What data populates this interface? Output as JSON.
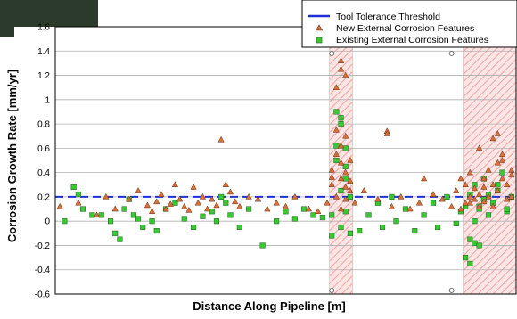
{
  "chart_data": {
    "type": "scatter",
    "title": "",
    "xlabel": "Distance Along Pipeline [m]",
    "ylabel": "Corrosion Growth Rate [mm/yr]",
    "ylim": [
      -0.6,
      1.6
    ],
    "yticks": [
      -0.6,
      -0.4,
      -0.2,
      0,
      0.2,
      0.4,
      0.6,
      0.8,
      1,
      1.2,
      1.4,
      1.6
    ],
    "ytick_labels": [
      "-0.6",
      "-0.4",
      "-0.2",
      "0",
      "0.2",
      "0.4",
      "0.6",
      "0.8",
      "1",
      "1.2",
      "1.4",
      "1.6"
    ],
    "xticks_shown": false,
    "grid": "horizontal",
    "legend_position": "top-right",
    "threshold": {
      "name": "Tool Tolerance Threshold",
      "value": 0.2,
      "color": "#1f2fd6"
    },
    "highlight_bands": [
      {
        "from": 0.595,
        "to": 0.645
      },
      {
        "from": 0.885,
        "to": 1.0
      }
    ],
    "series": [
      {
        "name": "New External Corrosion Features",
        "marker": "triangle",
        "color": "#d9703a",
        "x": [
          0.01,
          0.05,
          0.09,
          0.11,
          0.13,
          0.16,
          0.18,
          0.2,
          0.21,
          0.22,
          0.23,
          0.24,
          0.25,
          0.26,
          0.27,
          0.28,
          0.29,
          0.3,
          0.31,
          0.32,
          0.33,
          0.34,
          0.35,
          0.36,
          0.37,
          0.38,
          0.39,
          0.4,
          0.42,
          0.44,
          0.46,
          0.48,
          0.5,
          0.52,
          0.55,
          0.57,
          0.59,
          0.6,
          0.6,
          0.61,
          0.61,
          0.61,
          0.62,
          0.62,
          0.62,
          0.62,
          0.63,
          0.63,
          0.63,
          0.63,
          0.64,
          0.64,
          0.64,
          0.62,
          0.62,
          0.61,
          0.63,
          0.6,
          0.65,
          0.67,
          0.7,
          0.72,
          0.72,
          0.73,
          0.75,
          0.77,
          0.79,
          0.8,
          0.82,
          0.84,
          0.86,
          0.87,
          0.88,
          0.89,
          0.89,
          0.9,
          0.9,
          0.91,
          0.91,
          0.92,
          0.92,
          0.93,
          0.93,
          0.94,
          0.94,
          0.95,
          0.95,
          0.96,
          0.96,
          0.97,
          0.97,
          0.98,
          0.98,
          0.99,
          0.99,
          0.95,
          0.92,
          0.88,
          0.96,
          0.9,
          0.97,
          0.93,
          0.99
        ],
        "y": [
          0.12,
          0.15,
          0.05,
          0.2,
          0.1,
          0.18,
          0.25,
          0.13,
          0.08,
          0.16,
          0.22,
          0.1,
          0.14,
          0.3,
          0.18,
          0.12,
          0.09,
          0.28,
          0.15,
          0.2,
          0.1,
          0.18,
          0.13,
          0.67,
          0.3,
          0.24,
          0.16,
          0.12,
          0.2,
          0.18,
          0.1,
          0.15,
          0.12,
          0.2,
          0.1,
          0.08,
          0.15,
          0.3,
          0.42,
          0.55,
          0.2,
          0.75,
          0.1,
          0.35,
          0.48,
          0.62,
          0.28,
          0.7,
          0.18,
          0.4,
          0.25,
          0.5,
          0.33,
          1.32,
          1.25,
          1.1,
          1.2,
          0.36,
          0.15,
          0.25,
          0.18,
          0.74,
          0.72,
          0.12,
          0.2,
          0.1,
          0.15,
          0.35,
          0.22,
          0.18,
          0.12,
          0.25,
          0.1,
          0.3,
          0.15,
          0.2,
          0.4,
          0.18,
          0.27,
          0.12,
          0.22,
          0.35,
          0.16,
          0.42,
          0.2,
          0.3,
          0.12,
          0.48,
          0.25,
          0.35,
          0.55,
          0.18,
          0.3,
          0.42,
          0.2,
          0.68,
          0.6,
          0.35,
          0.72,
          0.15,
          0.5,
          0.28,
          0.38
        ]
      },
      {
        "name": "Existing External Corrosion Features",
        "marker": "square",
        "color": "#39c833",
        "x": [
          0.02,
          0.04,
          0.05,
          0.06,
          0.08,
          0.1,
          0.12,
          0.13,
          0.14,
          0.15,
          0.16,
          0.17,
          0.18,
          0.19,
          0.21,
          0.22,
          0.24,
          0.26,
          0.28,
          0.3,
          0.32,
          0.34,
          0.35,
          0.36,
          0.37,
          0.38,
          0.4,
          0.42,
          0.45,
          0.48,
          0.5,
          0.52,
          0.54,
          0.56,
          0.58,
          0.6,
          0.6,
          0.61,
          0.61,
          0.62,
          0.62,
          0.62,
          0.63,
          0.63,
          0.63,
          0.64,
          0.64,
          0.62,
          0.61,
          0.63,
          0.66,
          0.68,
          0.7,
          0.71,
          0.73,
          0.74,
          0.76,
          0.78,
          0.8,
          0.82,
          0.83,
          0.85,
          0.87,
          0.88,
          0.89,
          0.9,
          0.9,
          0.91,
          0.91,
          0.92,
          0.92,
          0.93,
          0.93,
          0.94,
          0.95,
          0.96,
          0.97,
          0.98,
          0.99,
          0.89,
          0.9,
          0.91,
          0.92,
          0.94,
          0.96,
          0.98
        ],
        "y": [
          0.0,
          0.28,
          0.22,
          0.1,
          0.05,
          0.05,
          0.0,
          -0.1,
          -0.15,
          0.1,
          0.18,
          0.05,
          0.02,
          -0.05,
          0.0,
          -0.08,
          0.1,
          0.15,
          0.02,
          -0.05,
          0.04,
          0.08,
          0.0,
          0.2,
          0.15,
          0.05,
          -0.05,
          0.1,
          -0.2,
          0.0,
          0.08,
          0.02,
          0.1,
          0.05,
          0.03,
          0.05,
          -0.12,
          0.9,
          0.5,
          0.8,
          0.25,
          -0.05,
          0.35,
          0.6,
          0.08,
          0.2,
          -0.1,
          0.85,
          0.62,
          0.45,
          -0.08,
          0.05,
          0.15,
          -0.05,
          0.2,
          0.0,
          0.1,
          -0.08,
          0.05,
          0.15,
          -0.05,
          0.2,
          -0.02,
          0.08,
          0.12,
          -0.15,
          0.22,
          -0.18,
          0.3,
          0.1,
          -0.2,
          0.18,
          0.35,
          0.05,
          0.15,
          0.25,
          0.4,
          0.08,
          0.2,
          -0.3,
          -0.35,
          0.0,
          0.12,
          0.22,
          0.3,
          0.1
        ]
      }
    ],
    "outline_markers": {
      "x": [
        0.6,
        0.86,
        0.6,
        0.86
      ],
      "y": [
        1.38,
        1.38,
        -0.57,
        -0.57
      ]
    }
  }
}
